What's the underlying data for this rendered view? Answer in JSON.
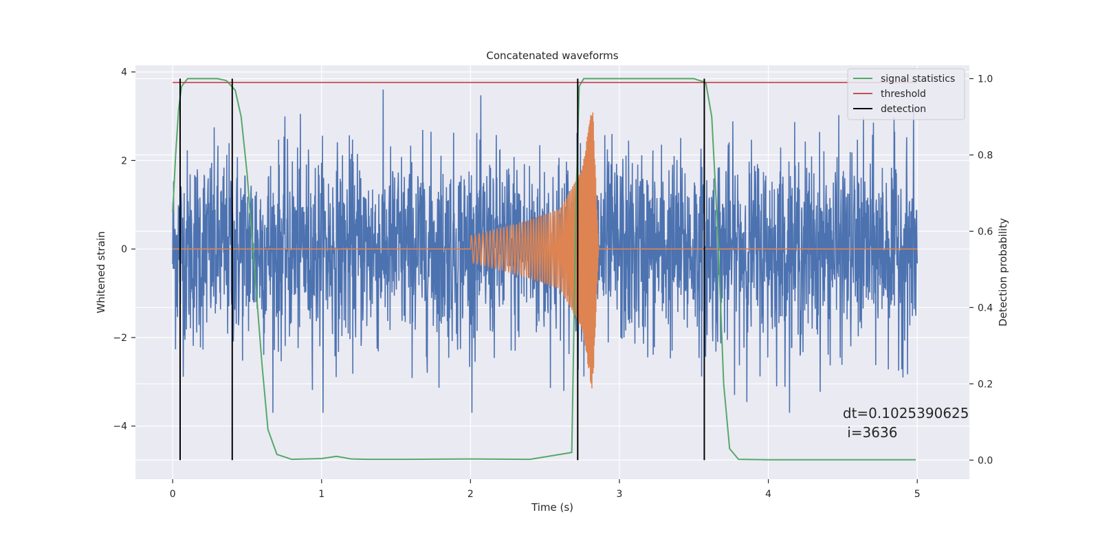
{
  "chart_data": {
    "type": "line",
    "title": "Concatenated waveforms",
    "xlabel": "Time (s)",
    "ylabel": "Whitened strain",
    "ylabel_right": "Detection probability",
    "xlim": [
      -0.25,
      5.35
    ],
    "ylim": [
      -5.2,
      4.15
    ],
    "ylim_right": [
      -0.05,
      1.035
    ],
    "xticks": [
      0,
      1,
      2,
      3,
      4,
      5
    ],
    "yticks": [
      -4,
      -2,
      0,
      2,
      4
    ],
    "yticks_right": [
      0.0,
      0.2,
      0.4,
      0.6,
      0.8,
      1.0
    ],
    "xtick_labels": [
      "0",
      "1",
      "2",
      "3",
      "4",
      "5"
    ],
    "ytick_labels": [
      "−4",
      "−2",
      "0",
      "2",
      "4"
    ],
    "ytick_labels_right": [
      "0.0",
      "0.2",
      "0.4",
      "0.6",
      "0.8",
      "1.0"
    ],
    "grid": true,
    "legend_position": "top-right",
    "colors": {
      "strain": "#4c72b0",
      "template": "#dd8452",
      "signal_statistics": "#55a868",
      "threshold": "#c44e52",
      "detection": "#000000",
      "plot_background": "#eaeaf2",
      "grid": "#ffffff"
    },
    "series": [
      {
        "key": "strain",
        "axis": "left",
        "description": "whitened noisy strain, amplitude about ±1.5 with peaks to ±3.6",
        "x_range": [
          0,
          5
        ],
        "amplitude": 1.1
      },
      {
        "key": "template",
        "axis": "left",
        "description": "chirp waveform",
        "x": [
          0,
          2.0,
          2.3,
          2.6,
          2.75,
          2.82,
          2.86,
          5.0
        ],
        "envelope": [
          0,
          0.3,
          0.55,
          0.9,
          1.8,
          3.3,
          0,
          0
        ]
      },
      {
        "key": "signal_statistics",
        "name": "signal statistics",
        "axis": "right",
        "x": [
          0,
          0.02,
          0.04,
          0.06,
          0.1,
          0.2,
          0.3,
          0.36,
          0.42,
          0.46,
          0.5,
          0.55,
          0.6,
          0.64,
          0.7,
          0.8,
          1.0,
          1.1,
          1.2,
          1.3,
          1.6,
          2.0,
          2.4,
          2.68,
          2.71,
          2.73,
          2.76,
          2.8,
          3.0,
          3.3,
          3.5,
          3.58,
          3.62,
          3.66,
          3.7,
          3.74,
          3.8,
          4.0,
          4.5,
          4.99
        ],
        "y": [
          0.65,
          0.8,
          0.92,
          0.98,
          1.0,
          1.0,
          1.0,
          0.995,
          0.97,
          0.9,
          0.75,
          0.5,
          0.25,
          0.08,
          0.015,
          0.002,
          0.004,
          0.01,
          0.003,
          0.002,
          0.002,
          0.003,
          0.002,
          0.02,
          0.7,
          0.98,
          1.0,
          1.0,
          1.0,
          1.0,
          1.0,
          0.99,
          0.9,
          0.6,
          0.2,
          0.03,
          0.002,
          0.001,
          0.001,
          0.001
        ]
      },
      {
        "key": "threshold",
        "name": "threshold",
        "axis": "right",
        "x": [
          0,
          5
        ],
        "y": [
          0.99,
          0.99
        ]
      },
      {
        "key": "detection",
        "name": "detection",
        "axis": "right",
        "x": [
          0.05,
          0.4,
          2.72,
          3.57
        ],
        "y_range": [
          0,
          1.0
        ]
      }
    ],
    "legend": [
      {
        "label": "signal statistics",
        "color": "#55a868"
      },
      {
        "label": "threshold",
        "color": "#c44e52"
      },
      {
        "label": "detection",
        "color": "#000000"
      }
    ],
    "annotation": {
      "line1": "dt=0.1025390625",
      "line2": " i=3636",
      "x": 4.5,
      "y": 0.11
    }
  }
}
